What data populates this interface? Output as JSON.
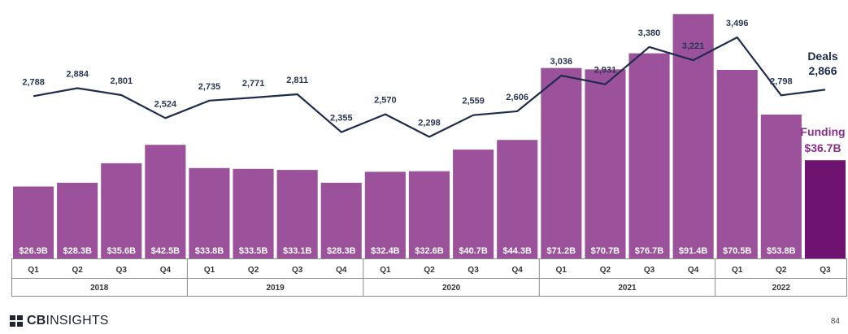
{
  "chart_data": {
    "type": "bar",
    "series": [
      {
        "name": "Funding",
        "unit": "$B",
        "values": [
          26.9,
          28.3,
          35.6,
          42.5,
          33.8,
          33.5,
          33.1,
          28.3,
          32.4,
          32.6,
          40.7,
          44.3,
          71.2,
          70.7,
          76.7,
          91.4,
          70.5,
          53.8,
          36.7
        ],
        "labels": [
          "$26.9B",
          "$28.3B",
          "$35.6B",
          "$42.5B",
          "$33.8B",
          "$33.5B",
          "$33.1B",
          "$28.3B",
          "$32.4B",
          "$32.6B",
          "$40.7B",
          "$44.3B",
          "$71.2B",
          "$70.7B",
          "$76.7B",
          "$91.4B",
          "$70.5B",
          "$53.8B",
          ""
        ]
      },
      {
        "name": "Deals",
        "values": [
          2788,
          2884,
          2801,
          2524,
          2735,
          2771,
          2811,
          2355,
          2570,
          2298,
          2559,
          2606,
          3036,
          2931,
          3380,
          3221,
          3496,
          2798,
          2866
        ],
        "labels": [
          "2,788",
          "2,884",
          "2,801",
          "2,524",
          "2,735",
          "2,771",
          "2,811",
          "2,355",
          "2,570",
          "2,298",
          "2,559",
          "2,606",
          "3,036",
          "2,931",
          "3,380",
          "3,221",
          "3,496",
          "2,798",
          ""
        ]
      }
    ],
    "quarters": [
      "Q1",
      "Q2",
      "Q3",
      "Q4",
      "Q1",
      "Q2",
      "Q3",
      "Q4",
      "Q1",
      "Q2",
      "Q3",
      "Q4",
      "Q1",
      "Q2",
      "Q3",
      "Q4",
      "Q1",
      "Q2",
      "Q3"
    ],
    "years": [
      {
        "label": "2018",
        "count": 4
      },
      {
        "label": "2019",
        "count": 4
      },
      {
        "label": "2020",
        "count": 4
      },
      {
        "label": "2021",
        "count": 4
      },
      {
        "label": "2022",
        "count": 3
      }
    ],
    "legend": {
      "deals_title": "Deals",
      "deals_value": "2,866",
      "funding_title": "Funding",
      "funding_value": "$36.7B"
    },
    "funding_ylim": [
      0,
      93
    ],
    "deals_ylim": [
      1500,
      3750
    ]
  },
  "colors": {
    "bar": "#9b529b",
    "bar_highlight": "#6e1470",
    "line": "#1f2b4d",
    "funding_title": "#8b2d8b",
    "deals_title": "#1f2b4d"
  },
  "footer": {
    "logo_bold": "CB",
    "logo_rest": "INSIGHTS",
    "page_number": "84"
  }
}
